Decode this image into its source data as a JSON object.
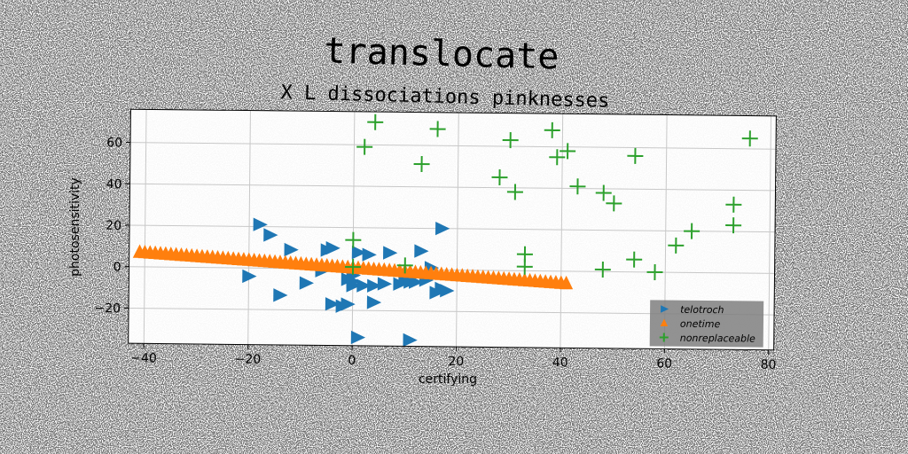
{
  "chart_data": {
    "type": "scatter",
    "title": "translocate",
    "subtitle": "X L dissociations pinknesses",
    "xlabel": "certifying",
    "ylabel": "photosensitivity",
    "xlim": [
      -43,
      81
    ],
    "ylim": [
      -37,
      76
    ],
    "xticks": [
      -40,
      -20,
      0,
      20,
      40,
      60,
      80
    ],
    "yticks": [
      -20,
      0,
      20,
      40,
      60
    ],
    "grid": true,
    "legend_position": "lower-right",
    "series": [
      {
        "name": "telotroch",
        "marker": "triangle-right",
        "color": "#1f77b4",
        "points": [
          [
            -18,
            21
          ],
          [
            -16,
            16
          ],
          [
            -12,
            9
          ],
          [
            -20,
            -4
          ],
          [
            -14,
            -13
          ],
          [
            -9,
            -7
          ],
          [
            -5,
            9
          ],
          [
            -4,
            10
          ],
          [
            -6,
            -1
          ],
          [
            -4,
            -17
          ],
          [
            -2,
            -18
          ],
          [
            -1,
            -17
          ],
          [
            -1,
            -5
          ],
          [
            0,
            -8
          ],
          [
            0,
            -6
          ],
          [
            0,
            -3
          ],
          [
            0,
            -1
          ],
          [
            1,
            8
          ],
          [
            2,
            -8
          ],
          [
            3,
            7
          ],
          [
            4,
            -8
          ],
          [
            4,
            -16
          ],
          [
            6,
            -7
          ],
          [
            7,
            8
          ],
          [
            9,
            -7
          ],
          [
            10,
            -5
          ],
          [
            11,
            -6
          ],
          [
            12,
            -6
          ],
          [
            13,
            9
          ],
          [
            14,
            -5
          ],
          [
            15,
            1
          ],
          [
            16,
            -11
          ],
          [
            17,
            -9
          ],
          [
            18,
            -10
          ],
          [
            17,
            20
          ],
          [
            1,
            -33
          ],
          [
            11,
            -34
          ]
        ]
      },
      {
        "name": "onetime",
        "marker": "triangle-up",
        "color": "#ff7f0e",
        "line": {
          "x0": -41,
          "y0": 7,
          "x1": 41,
          "y1": -6,
          "count": 83
        }
      },
      {
        "name": "nonreplaceable",
        "marker": "plus",
        "color": "#2ca02c",
        "points": [
          [
            4,
            71
          ],
          [
            16,
            68
          ],
          [
            2,
            59
          ],
          [
            13,
            51
          ],
          [
            30,
            63
          ],
          [
            38,
            68
          ],
          [
            39,
            55
          ],
          [
            41,
            58
          ],
          [
            28,
            45
          ],
          [
            31,
            38
          ],
          [
            43,
            41
          ],
          [
            48,
            38
          ],
          [
            50,
            33
          ],
          [
            54,
            56
          ],
          [
            76,
            65
          ],
          [
            73,
            33
          ],
          [
            73,
            23
          ],
          [
            65,
            20
          ],
          [
            62,
            13
          ],
          [
            33,
            8
          ],
          [
            33,
            2
          ],
          [
            48,
            1
          ],
          [
            54,
            6
          ],
          [
            58,
            0
          ],
          [
            0,
            14
          ],
          [
            10,
            2
          ],
          [
            0,
            1
          ]
        ]
      }
    ]
  }
}
